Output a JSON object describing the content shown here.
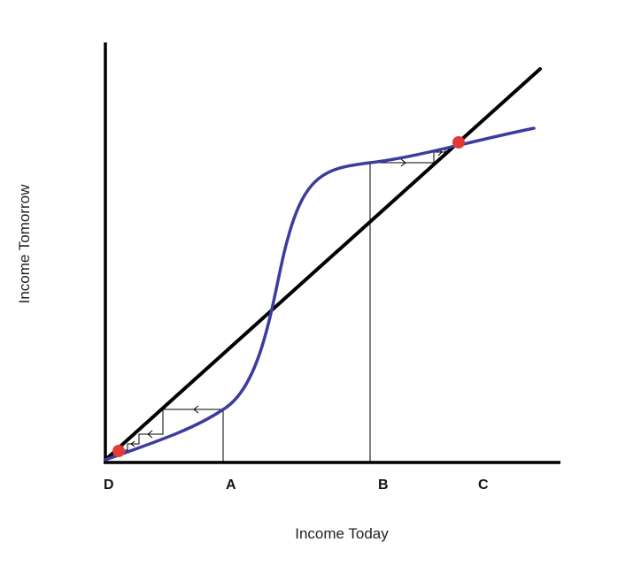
{
  "diagram": {
    "x_axis_label": "Income Today",
    "y_axis_label": "Income Tomorrow",
    "points": [
      {
        "label": "D",
        "income_today": 0.2
      },
      {
        "label": "A",
        "income_today": 2.0
      },
      {
        "label": "B",
        "income_today": 4.7
      },
      {
        "label": "C",
        "income_today": 6.3
      }
    ],
    "curves": [
      {
        "name": "45-degree line",
        "color": "#111111"
      },
      {
        "name": "income curve",
        "color": "#3c3c9e"
      }
    ],
    "equilibria": [
      {
        "income_today": 0.2,
        "income_tomorrow": 0.2
      },
      {
        "income_today": 6.3,
        "income_tomorrow": 6.3
      }
    ],
    "equilibrium_color": "#e53935"
  }
}
